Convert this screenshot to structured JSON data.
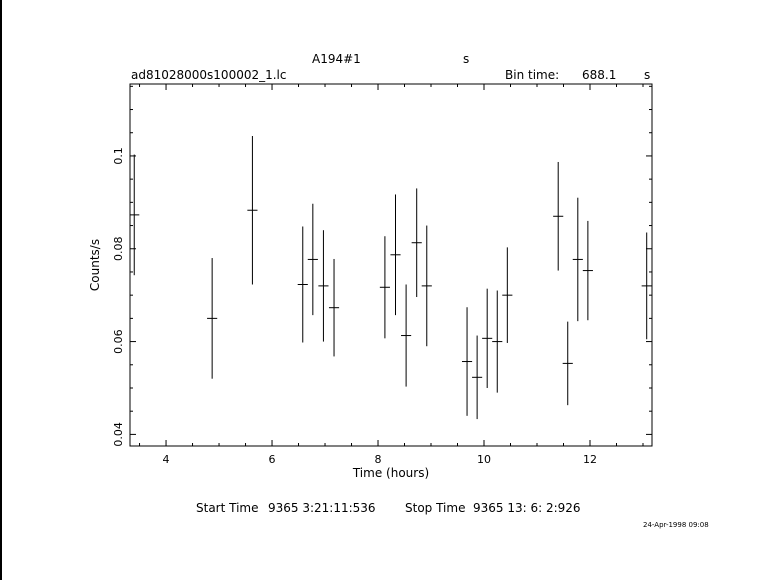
{
  "header": {
    "object_name": "A194#1",
    "object_unit": "s",
    "file_name": "ad81028000s100002_1.lc",
    "bin_time_label": "Bin time:",
    "bin_time_value": "688.1",
    "bin_time_unit": "s"
  },
  "footer": {
    "start_label": "Start Time",
    "start_value": "9365  3:21:11:536",
    "stop_label": "Stop Time",
    "stop_value": "9365 13: 6: 2:926",
    "date_stamp": "24-Apr-1998 09:08"
  },
  "chart_data": {
    "type": "scatter",
    "xlabel": "Time (hours)",
    "ylabel": "Counts/s",
    "xlim": [
      3.32,
      13.17
    ],
    "ylim": [
      0.0375,
      0.1155
    ],
    "x_ticks": [
      4,
      6,
      8,
      10,
      12
    ],
    "y_ticks": [
      0.04,
      0.06,
      0.08,
      0.1
    ],
    "x_tick_labels": [
      "4",
      "6",
      "8",
      "10",
      "12"
    ],
    "y_tick_labels": [
      "0.04",
      "0.06",
      "0.08",
      "0.1"
    ],
    "grid": false,
    "points": [
      {
        "x": 3.4,
        "y": 0.0873,
        "err": 0.013
      },
      {
        "x": 4.87,
        "y": 0.065,
        "err": 0.013
      },
      {
        "x": 5.63,
        "y": 0.0883,
        "err": 0.016
      },
      {
        "x": 6.58,
        "y": 0.0723,
        "err": 0.0125
      },
      {
        "x": 6.77,
        "y": 0.0777,
        "err": 0.012
      },
      {
        "x": 6.97,
        "y": 0.072,
        "err": 0.012
      },
      {
        "x": 7.17,
        "y": 0.0673,
        "err": 0.0105
      },
      {
        "x": 8.13,
        "y": 0.0717,
        "err": 0.011
      },
      {
        "x": 8.33,
        "y": 0.0787,
        "err": 0.013
      },
      {
        "x": 8.53,
        "y": 0.0613,
        "err": 0.011
      },
      {
        "x": 8.73,
        "y": 0.0813,
        "err": 0.0117
      },
      {
        "x": 8.92,
        "y": 0.072,
        "err": 0.013
      },
      {
        "x": 9.68,
        "y": 0.0557,
        "err": 0.0117
      },
      {
        "x": 9.87,
        "y": 0.0523,
        "err": 0.009
      },
      {
        "x": 10.06,
        "y": 0.0607,
        "err": 0.0107
      },
      {
        "x": 10.25,
        "y": 0.06,
        "err": 0.011
      },
      {
        "x": 10.44,
        "y": 0.07,
        "err": 0.0103
      },
      {
        "x": 11.4,
        "y": 0.087,
        "err": 0.0117
      },
      {
        "x": 11.58,
        "y": 0.0553,
        "err": 0.009
      },
      {
        "x": 11.77,
        "y": 0.0777,
        "err": 0.0133
      },
      {
        "x": 11.96,
        "y": 0.0753,
        "err": 0.0107
      },
      {
        "x": 13.07,
        "y": 0.072,
        "err": 0.0115
      }
    ]
  }
}
